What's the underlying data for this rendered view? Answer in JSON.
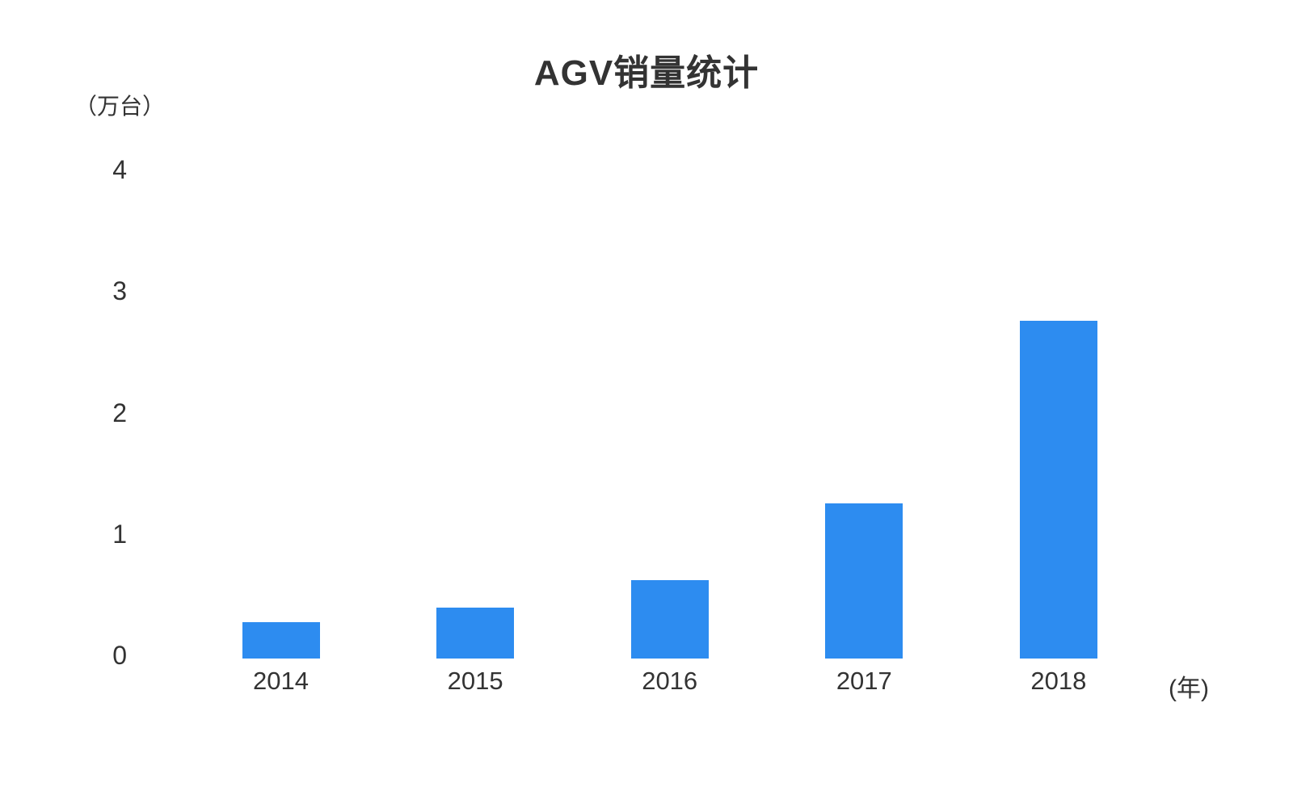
{
  "page": {
    "background_color": "#ffffff"
  },
  "chart_data": {
    "type": "bar",
    "title": "AGV销量统计",
    "y_unit_label": "（万台）",
    "x_unit_label": "(年)",
    "categories": [
      "2014",
      "2015",
      "2016",
      "2017",
      "2018"
    ],
    "values": [
      0.3,
      0.42,
      0.65,
      1.28,
      2.78
    ],
    "y_ticks": [
      0,
      1,
      2,
      3,
      4
    ],
    "ylim": [
      0,
      4
    ],
    "xlabel": "",
    "ylabel": "",
    "bar_color": "#2d8cf0",
    "text_color": "#333333",
    "gridlines": false,
    "axis_lines": false,
    "legend": "none"
  }
}
